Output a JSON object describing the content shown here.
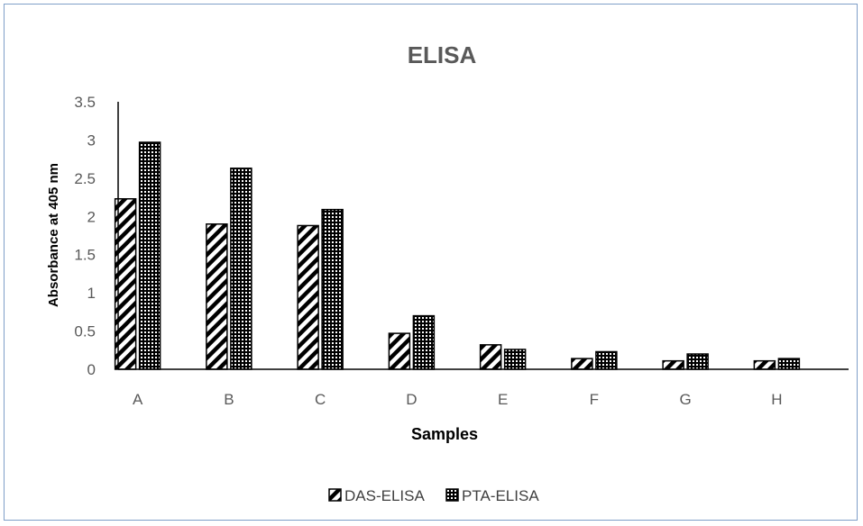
{
  "chart_data": {
    "type": "bar",
    "title": "ELISA",
    "xlabel": "Samples",
    "ylabel": "Absorbance at 405 nm",
    "categories": [
      "A",
      "B",
      "C",
      "D",
      "E",
      "F",
      "G",
      "H"
    ],
    "series": [
      {
        "name": "DAS-ELISA",
        "values": [
          2.23,
          1.9,
          1.88,
          0.47,
          0.32,
          0.14,
          0.11,
          0.11
        ],
        "pattern": "diagonal-stripes"
      },
      {
        "name": "PTA-ELISA",
        "values": [
          2.97,
          2.63,
          2.09,
          0.7,
          0.26,
          0.23,
          0.2,
          0.14
        ],
        "pattern": "checker"
      }
    ],
    "ylim": [
      0,
      3.5
    ],
    "yticks": [
      "0",
      "0.5",
      "1",
      "1.5",
      "2",
      "2.5",
      "3",
      "3.5"
    ],
    "grid": false,
    "legend_position": "bottom",
    "colors": {
      "bar_fill": "#000000",
      "bar_background": "#ffffff",
      "frame": "#7f9fc8",
      "axis": "#000000"
    }
  }
}
